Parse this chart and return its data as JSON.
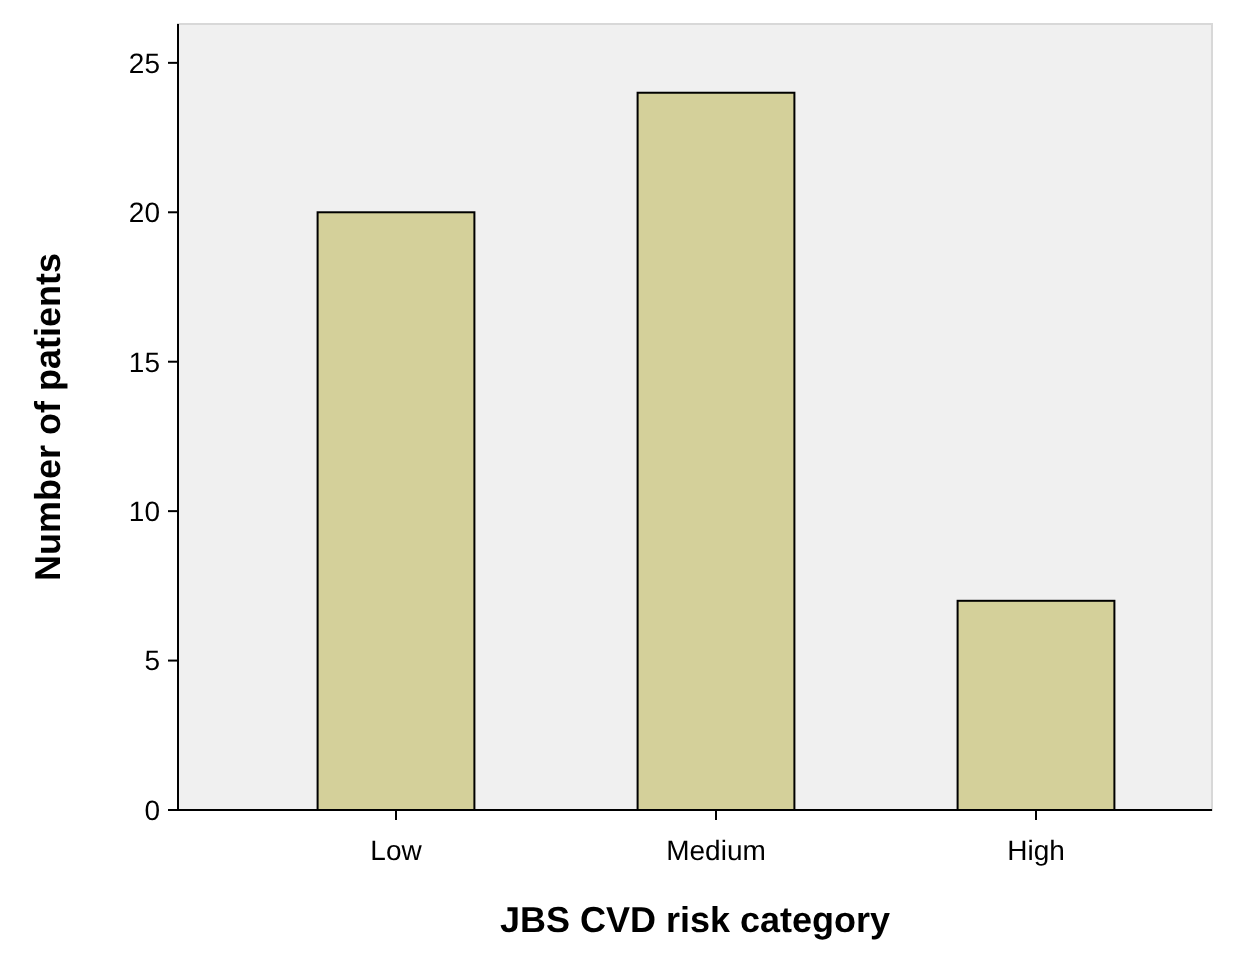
{
  "chart_data": {
    "type": "bar",
    "xlabel": "JBS CVD risk category",
    "ylabel": "Number of patients",
    "categories": [
      "Low",
      "Medium",
      "High"
    ],
    "values": [
      20,
      24,
      7
    ],
    "color": "#d4d09a",
    "ylim": [
      0,
      26.3
    ],
    "yticks": [
      0,
      5,
      10,
      15,
      20,
      25
    ],
    "grid": false
  }
}
